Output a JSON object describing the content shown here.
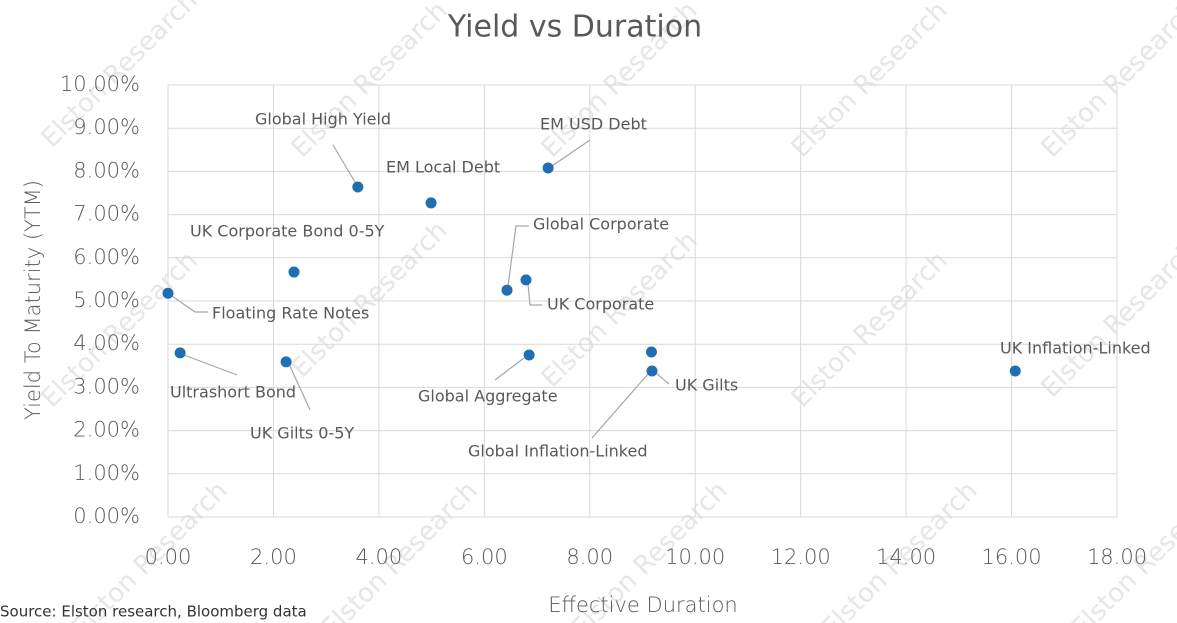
{
  "chart_data": {
    "type": "scatter",
    "title": "Yield vs Duration",
    "xlabel": "Effective Duration",
    "ylabel": "Yield To Maturity (YTM)",
    "source": "Source: Elston research, Bloomberg data",
    "watermark": "Elston Research",
    "color": "#1f6fb5",
    "grid": true,
    "labels": [
      "Floating Rate Notes",
      "Ultrashort Bond",
      "UK Gilts 0-5Y",
      "UK Corporate Bond 0-5Y",
      "Global High Yield",
      "EM Local Debt",
      "EM USD Debt",
      "Global Corporate",
      "UK Corporate",
      "Global Aggregate",
      "Global Inflation-Linked",
      "UK Gilts",
      "UK Inflation-Linked"
    ],
    "x": [
      0.0,
      0.23,
      2.24,
      2.39,
      3.6,
      4.99,
      7.21,
      6.43,
      6.79,
      6.85,
      9.17,
      9.18,
      16.07
    ],
    "values": [
      5.18,
      3.8,
      3.59,
      5.67,
      7.64,
      7.27,
      8.08,
      5.25,
      5.49,
      3.75,
      3.82,
      3.38,
      3.38
    ],
    "xlim": [
      0,
      18
    ],
    "xticks": [
      {
        "value": 0,
        "label": "0.00"
      },
      {
        "value": 2,
        "label": "2.00"
      },
      {
        "value": 4,
        "label": "4.00"
      },
      {
        "value": 6,
        "label": "6.00"
      },
      {
        "value": 8,
        "label": "8.00"
      },
      {
        "value": 10,
        "label": "10.00"
      },
      {
        "value": 12,
        "label": "12.00"
      },
      {
        "value": 14,
        "label": "14.00"
      },
      {
        "value": 16,
        "label": "16.00"
      },
      {
        "value": 18,
        "label": "18.00"
      }
    ],
    "ylim": [
      0,
      10
    ],
    "yticks": [
      {
        "value": 0,
        "label": "0.00%"
      },
      {
        "value": 1,
        "label": "1.00%"
      },
      {
        "value": 2,
        "label": "2.00%"
      },
      {
        "value": 3,
        "label": "3.00%"
      },
      {
        "value": 4,
        "label": "4.00%"
      },
      {
        "value": 5,
        "label": "5.00%"
      },
      {
        "value": 6,
        "label": "6.00%"
      },
      {
        "value": 7,
        "label": "7.00%"
      },
      {
        "value": 8,
        "label": "8.00%"
      },
      {
        "value": 9,
        "label": "9.00%"
      },
      {
        "value": 10,
        "label": "10.00%"
      }
    ]
  }
}
